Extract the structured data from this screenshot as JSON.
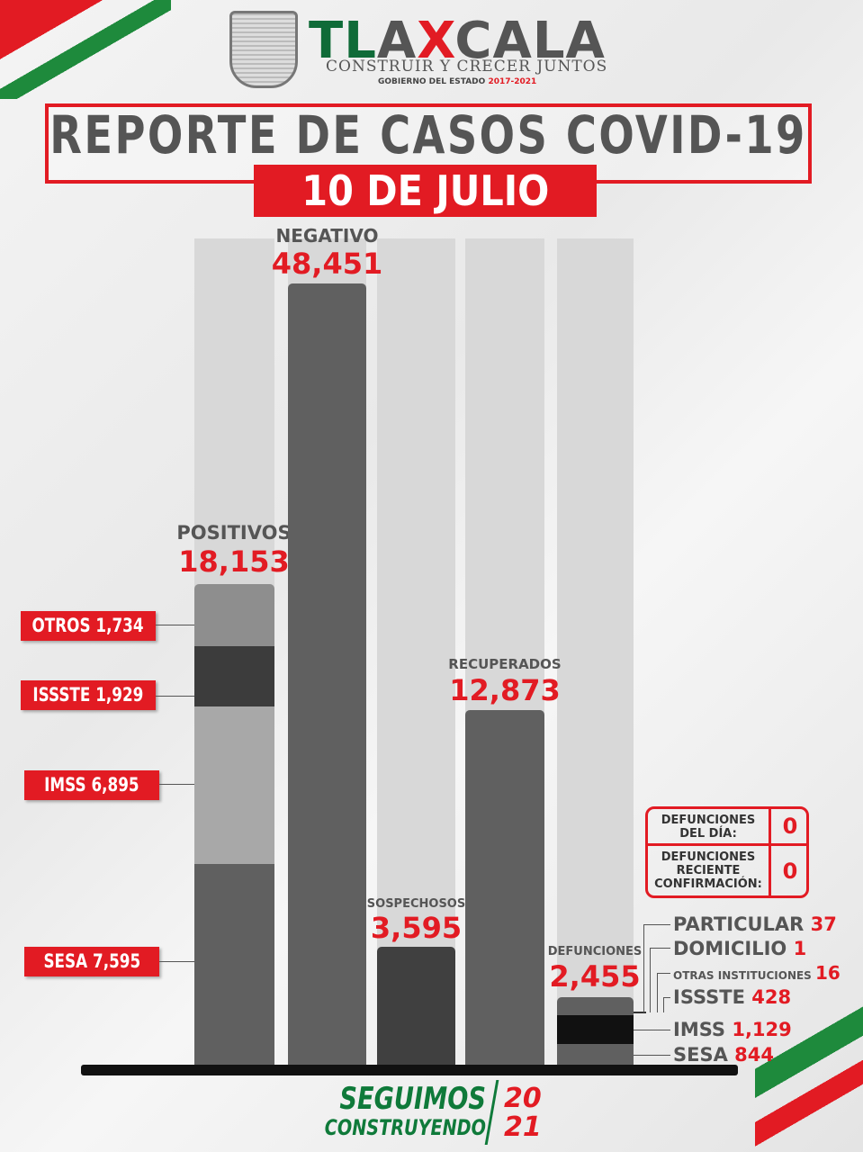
{
  "header": {
    "brand": {
      "t": "T",
      "l": "L",
      "a": "A",
      "x": "X",
      "rest": "CALA"
    },
    "tagline": "CONSTRUIR Y CRECER JUNTOS",
    "government": "GOBIERNO DEL ESTADO",
    "years": "2017-2021",
    "title": "REPORTE DE CASOS COVID-19",
    "date": "10 DE JULIO"
  },
  "colors": {
    "accent": "#e21b23",
    "green": "#0f6b38",
    "bar": "#606060"
  },
  "chart_data": {
    "type": "bar",
    "categories": [
      "POSITIVOS",
      "NEGATIVO",
      "SOSPECHOSOS",
      "RECUPERADOS",
      "DEFUNCIONES"
    ],
    "values": [
      "18,153",
      "48,451",
      "3,595",
      "12,873",
      "2,455"
    ],
    "positivos_breakdown": [
      {
        "name": "OTROS",
        "value": "1,734"
      },
      {
        "name": "ISSSTE",
        "value": "1,929"
      },
      {
        "name": "IMSS",
        "value": "6,895"
      },
      {
        "name": "SESA",
        "value": "7,595"
      }
    ],
    "defunciones_breakdown": [
      {
        "name": "PARTICULAR",
        "value": "37"
      },
      {
        "name": "DOMICILIO",
        "value": "1"
      },
      {
        "name": "OTRAS INSTITUCIONES",
        "value": "16"
      },
      {
        "name": "ISSSTE",
        "value": "428"
      },
      {
        "name": "IMSS",
        "value": "1,129"
      },
      {
        "name": "SESA",
        "value": "844"
      }
    ]
  },
  "defunciones_table": [
    {
      "label": "DEFUNCIONES DEL DÍA:",
      "value": "0"
    },
    {
      "label": "DEFUNCIONES RECIENTE CONFIRMACIÓN:",
      "value": "0"
    }
  ],
  "footer": {
    "line1": "SEGUIMOS",
    "line2": "CONSTRUYENDO",
    "year1": "20",
    "year2": "21"
  }
}
